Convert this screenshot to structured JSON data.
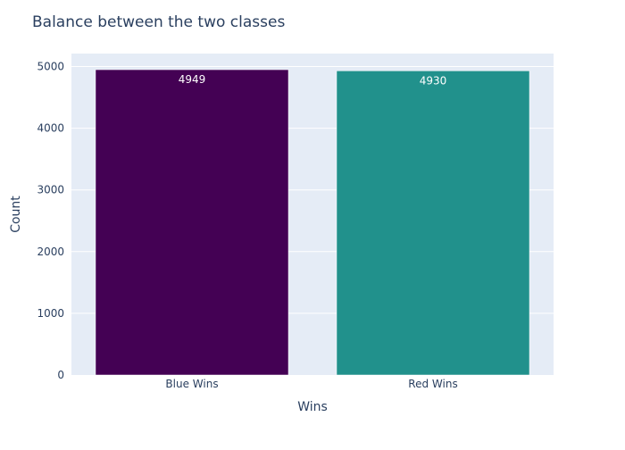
{
  "chart_data": {
    "type": "bar",
    "title": "Balance between the two classes",
    "xlabel": "Wins",
    "ylabel": "Count",
    "categories": [
      "Blue Wins",
      "Red Wins"
    ],
    "values": [
      4949,
      4930
    ],
    "data_labels": [
      "4949",
      "4930"
    ],
    "colors": [
      "#440154",
      "#21918c"
    ],
    "ylim": [
      0,
      5210
    ],
    "yticks": [
      0,
      1000,
      2000,
      3000,
      4000,
      5000
    ],
    "ytick_labels": [
      "0",
      "1000",
      "2000",
      "3000",
      "4000",
      "5000"
    ],
    "grid": true,
    "legend": false,
    "plot_background": "#e5ecf6"
  }
}
